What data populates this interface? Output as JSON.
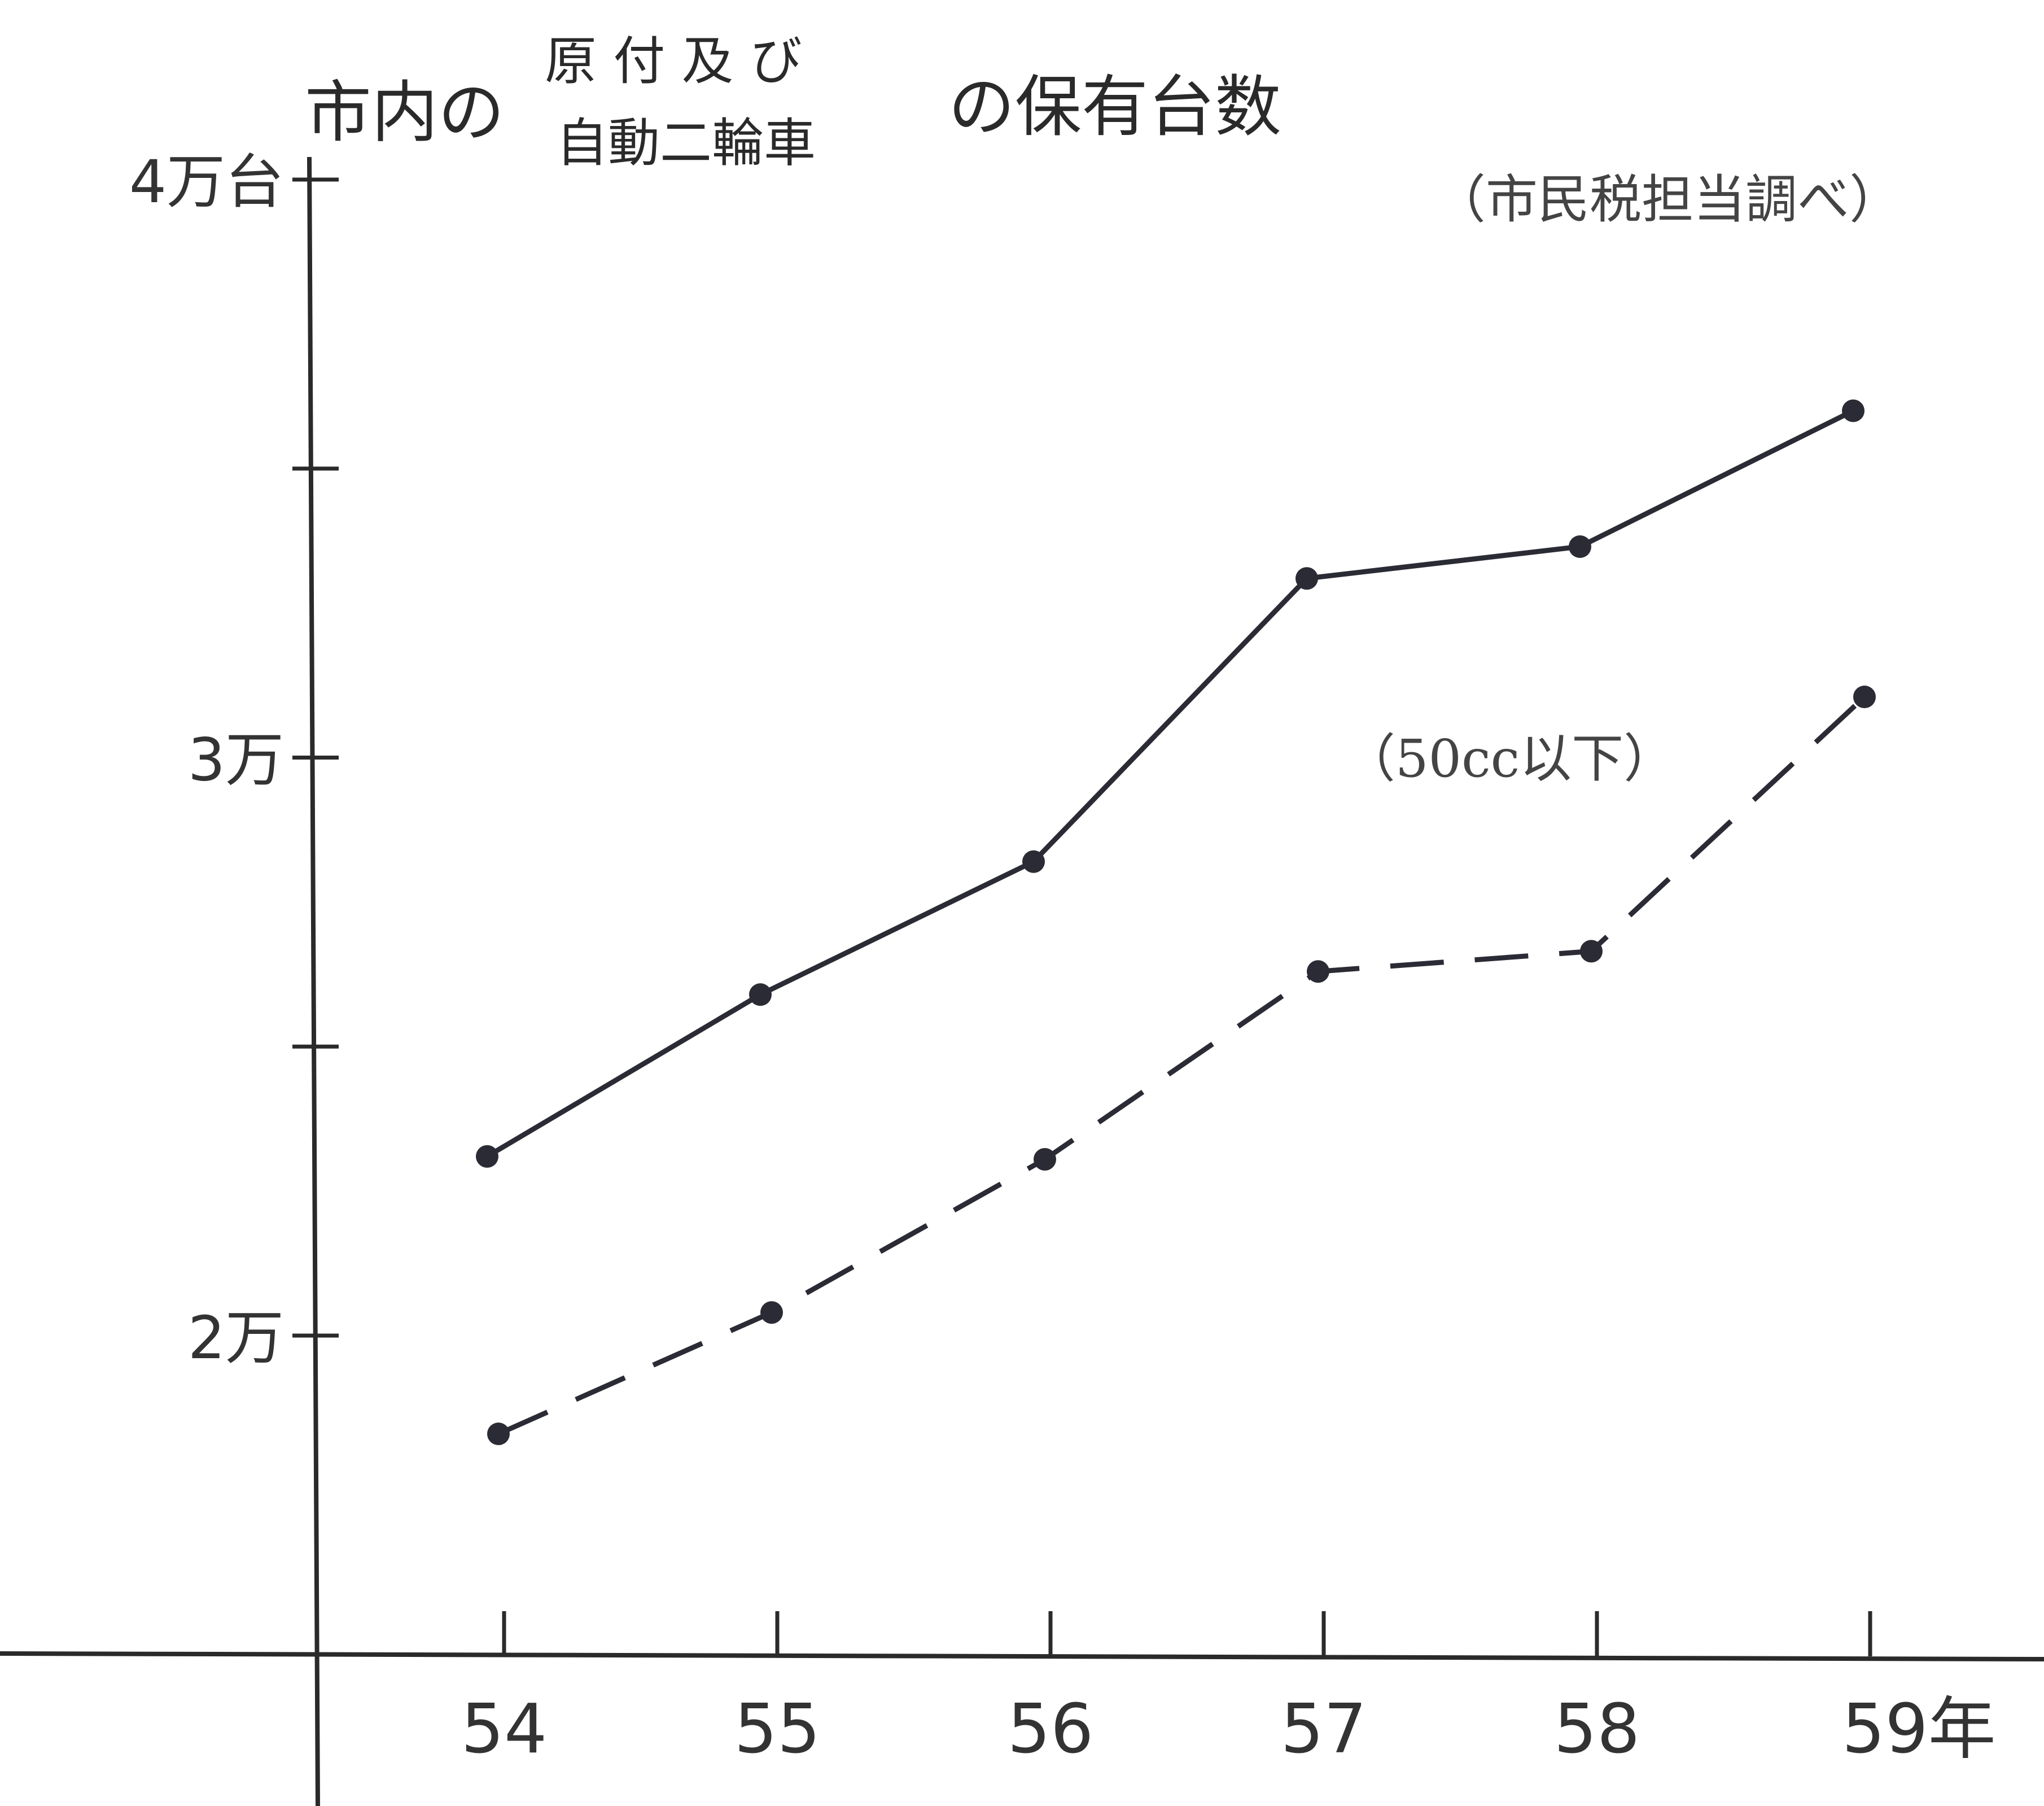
{
  "chart_data": {
    "type": "line",
    "title": {
      "prefix": "市内の",
      "stack_top": "原 付 及 び",
      "stack_bottom": "自動二輪車",
      "suffix": "の保有台数"
    },
    "source_note": "（市民税担当調べ）",
    "y_unit_label": "4万台",
    "x_unit_suffix": "59年",
    "categories": [
      "54",
      "55",
      "56",
      "57",
      "58",
      "59"
    ],
    "y_ticks": [
      {
        "value": 20000,
        "label": "2万"
      },
      {
        "value": 25000,
        "label": ""
      },
      {
        "value": 30000,
        "label": "3万"
      },
      {
        "value": 35000,
        "label": ""
      },
      {
        "value": 40000,
        "label": "4万台"
      }
    ],
    "ylim": [
      14500,
      40000
    ],
    "series": [
      {
        "name": "",
        "style": "solid",
        "color": "#2b2b35",
        "values": [
          23100,
          25900,
          28200,
          33100,
          33650,
          36000
        ]
      },
      {
        "name": "（50cc以下）",
        "style": "dashed",
        "color": "#2b2b35",
        "values": [
          18300,
          20400,
          23050,
          26300,
          26650,
          31050
        ]
      }
    ],
    "grid": false,
    "legend": "inline-label"
  }
}
